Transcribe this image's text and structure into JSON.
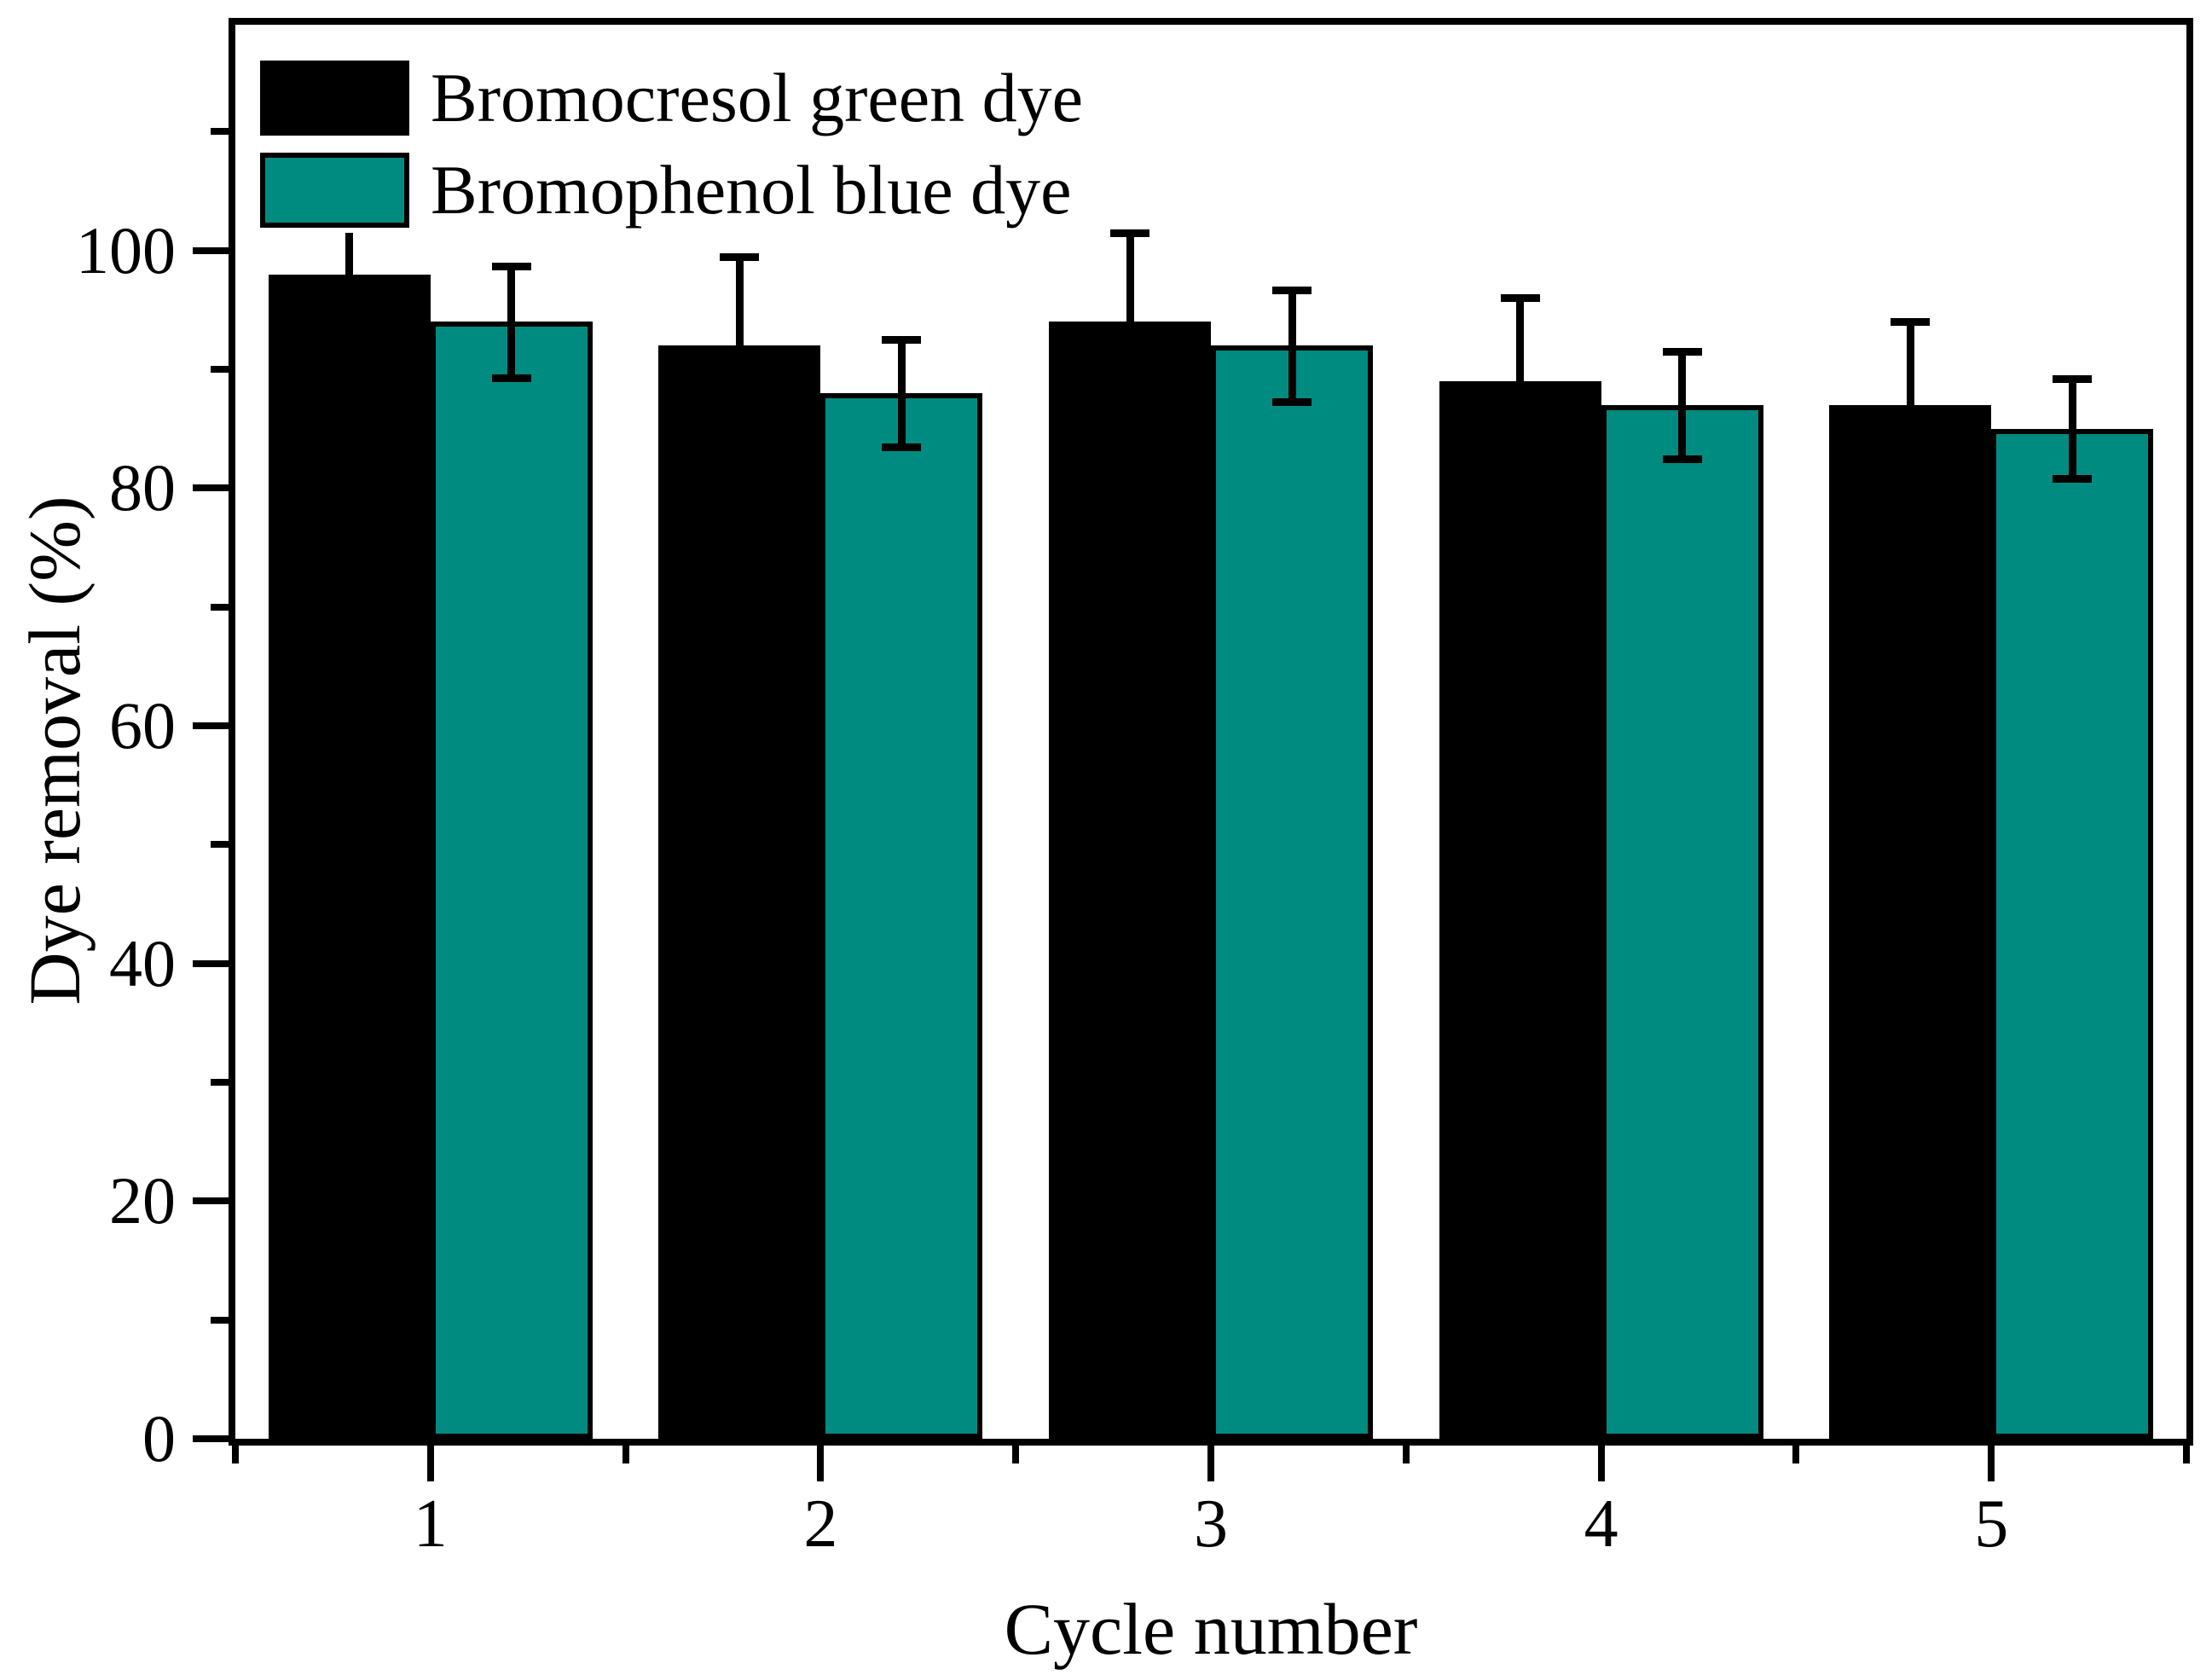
{
  "figure": {
    "background_color": "#ffffff",
    "text_color": "#000000"
  },
  "chart_data": {
    "type": "bar",
    "title": "",
    "xlabel": "Cycle number",
    "ylabel": "Dye removal (%)",
    "categories": [
      "1",
      "2",
      "3",
      "4",
      "5"
    ],
    "series": [
      {
        "name": "Bromocresol green dye",
        "color": "#000000",
        "values": [
          98,
          92,
          94,
          89,
          87
        ],
        "errors": [
          3.5,
          7.5,
          7.5,
          7,
          7
        ],
        "top_caps": [
          false,
          true,
          true,
          true,
          true
        ]
      },
      {
        "name": "Bromophenol blue dye",
        "color": "#008B80",
        "values": [
          94,
          88,
          92,
          87,
          85
        ],
        "errors": [
          4.7,
          4.5,
          4.7,
          4.5,
          4.2
        ],
        "top_caps": [
          true,
          true,
          true,
          true,
          true
        ]
      }
    ],
    "ylim": [
      0,
      119
    ],
    "yticks_major": [
      0,
      20,
      40,
      60,
      80,
      100
    ],
    "yticks_minor": [
      10,
      30,
      50,
      70,
      90,
      110
    ],
    "xticks_minor_positions": [
      0.5,
      1.5,
      2.5,
      3.5,
      4.5,
      5.5
    ],
    "error_bars": true,
    "grid": false,
    "legend_position": "top-left",
    "legend_frame": false
  }
}
